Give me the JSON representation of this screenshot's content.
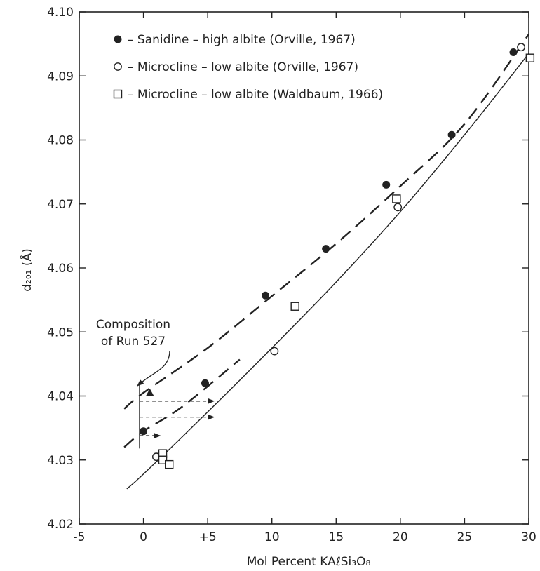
{
  "chart_data": {
    "type": "scatter",
    "title": "",
    "xlabel": "Mol Percent KAℓSi₃O₈",
    "ylabel": "d₂₀₁ (Å)",
    "xlim": [
      -5,
      30
    ],
    "ylim": [
      4.02,
      4.1
    ],
    "x_ticks": [
      -5,
      0,
      5,
      10,
      15,
      20,
      25,
      30
    ],
    "x_tick_labels": [
      "-5",
      "0",
      "+5",
      "10",
      "15",
      "20",
      "25",
      "30"
    ],
    "y_ticks": [
      4.02,
      4.03,
      4.04,
      4.05,
      4.06,
      4.07,
      4.08,
      4.09,
      4.1
    ],
    "y_tick_labels": [
      "4.02",
      "4.03",
      "4.04",
      "4.05",
      "4.06",
      "4.07",
      "4.08",
      "4.09",
      "4.10"
    ],
    "grid": false,
    "legend_position": "top-left",
    "series": [
      {
        "name": "Sanidine – high albite (Orville, 1967)",
        "marker": "filled-circle",
        "points": [
          [
            0.0,
            4.0345
          ],
          [
            4.8,
            4.042
          ],
          [
            9.5,
            4.0557
          ],
          [
            14.2,
            4.063
          ],
          [
            18.9,
            4.073
          ],
          [
            24.0,
            4.0808
          ],
          [
            28.8,
            4.0937
          ]
        ]
      },
      {
        "name": "Microcline – low albite (Orville, 1967)",
        "marker": "open-circle",
        "points": [
          [
            1.0,
            4.0305
          ],
          [
            10.2,
            4.047
          ],
          [
            19.8,
            4.0695
          ],
          [
            29.4,
            4.0945
          ]
        ]
      },
      {
        "name": "Microcline – low albite (Waldbaum, 1966)",
        "marker": "open-square",
        "points": [
          [
            1.5,
            4.031
          ],
          [
            1.5,
            4.03
          ],
          [
            2.0,
            4.0293
          ],
          [
            11.8,
            4.054
          ],
          [
            19.7,
            4.0708
          ],
          [
            30.1,
            4.0928
          ]
        ]
      }
    ],
    "curves": [
      {
        "style": "dashed",
        "points": [
          [
            -1.5,
            4.038
          ],
          [
            0,
            4.0405
          ],
          [
            5,
            4.0475
          ],
          [
            10,
            4.0556
          ],
          [
            15,
            4.0638
          ],
          [
            20,
            4.0728
          ],
          [
            25,
            4.0825
          ],
          [
            30,
            4.0965
          ]
        ]
      },
      {
        "style": "solid",
        "points": [
          [
            -1.3,
            4.0255
          ],
          [
            0,
            4.0278
          ],
          [
            5,
            4.0375
          ],
          [
            10,
            4.0475
          ],
          [
            15,
            4.0578
          ],
          [
            20,
            4.0688
          ],
          [
            25,
            4.0808
          ],
          [
            30,
            4.0935
          ]
        ]
      },
      {
        "style": "dashed",
        "points": [
          [
            -1.5,
            4.032
          ],
          [
            0,
            4.0345
          ],
          [
            3,
            4.0383
          ],
          [
            7.5,
            4.0457
          ]
        ]
      }
    ],
    "extra_markers": [
      {
        "marker": "filled-triangle",
        "x": 0.5,
        "y": 4.0405
      }
    ],
    "annotations": [
      {
        "text_lines": [
          "Composition",
          "of Run 527"
        ],
        "x": -0.3
      }
    ],
    "arrows": [
      {
        "from": [
          -0.3,
          4.0392
        ],
        "to": [
          5.5,
          4.0392
        ]
      },
      {
        "from": [
          -0.3,
          4.0367
        ],
        "to": [
          5.5,
          4.0367
        ]
      },
      {
        "from": [
          -0.3,
          4.0338
        ],
        "to": [
          1.3,
          4.0338
        ]
      }
    ]
  }
}
